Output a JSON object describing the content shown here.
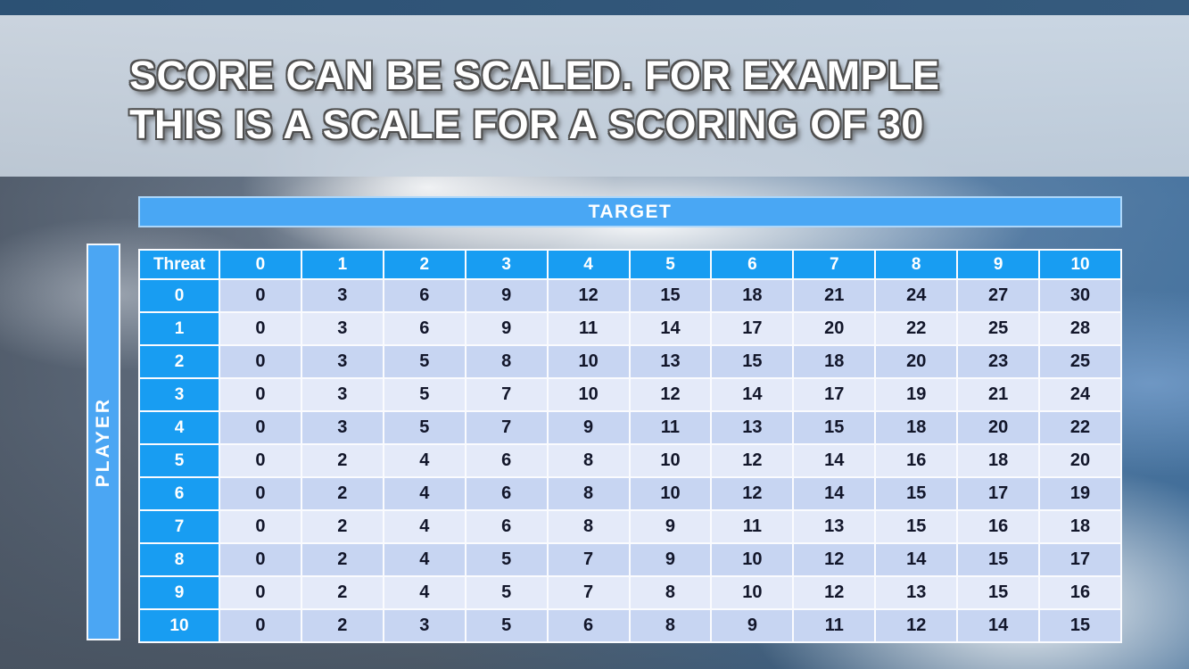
{
  "slide": {
    "title_lines": [
      "SCORE CAN BE SCALED. FOR EXAMPLE",
      "THIS IS A SCALE FOR A SCORING OF 30"
    ]
  },
  "chart_data": {
    "type": "table",
    "column_group_label": "TARGET",
    "row_group_label": "PLAYER",
    "corner_label": "Threat",
    "column_headers": [
      "0",
      "1",
      "2",
      "3",
      "4",
      "5",
      "6",
      "7",
      "8",
      "9",
      "10"
    ],
    "rows": [
      {
        "label": "0",
        "values": [
          0,
          3,
          6,
          9,
          12,
          15,
          18,
          21,
          24,
          27,
          30
        ]
      },
      {
        "label": "1",
        "values": [
          0,
          3,
          6,
          9,
          11,
          14,
          17,
          20,
          22,
          25,
          28
        ]
      },
      {
        "label": "2",
        "values": [
          0,
          3,
          5,
          8,
          10,
          13,
          15,
          18,
          20,
          23,
          25
        ]
      },
      {
        "label": "3",
        "values": [
          0,
          3,
          5,
          7,
          10,
          12,
          14,
          17,
          19,
          21,
          24
        ]
      },
      {
        "label": "4",
        "values": [
          0,
          3,
          5,
          7,
          9,
          11,
          13,
          15,
          18,
          20,
          22
        ]
      },
      {
        "label": "5",
        "values": [
          0,
          2,
          4,
          6,
          8,
          10,
          12,
          14,
          16,
          18,
          20
        ]
      },
      {
        "label": "6",
        "values": [
          0,
          2,
          4,
          6,
          8,
          10,
          12,
          14,
          15,
          17,
          19
        ]
      },
      {
        "label": "7",
        "values": [
          0,
          2,
          4,
          6,
          8,
          9,
          11,
          13,
          15,
          16,
          18
        ]
      },
      {
        "label": "8",
        "values": [
          0,
          2,
          4,
          5,
          7,
          9,
          10,
          12,
          14,
          15,
          17
        ]
      },
      {
        "label": "9",
        "values": [
          0,
          2,
          4,
          5,
          7,
          8,
          10,
          12,
          13,
          15,
          16
        ]
      },
      {
        "label": "10",
        "values": [
          0,
          2,
          3,
          5,
          6,
          8,
          9,
          11,
          12,
          14,
          15
        ]
      }
    ]
  },
  "colors": {
    "header_cell_blue": "#189df2",
    "band_blue": "#49a7f4",
    "row_shade_dark": "#c7d5f2",
    "row_shade_light": "#e4eaf9",
    "cell_text": "#12162a",
    "top_strip_blue": "#2c5174"
  }
}
